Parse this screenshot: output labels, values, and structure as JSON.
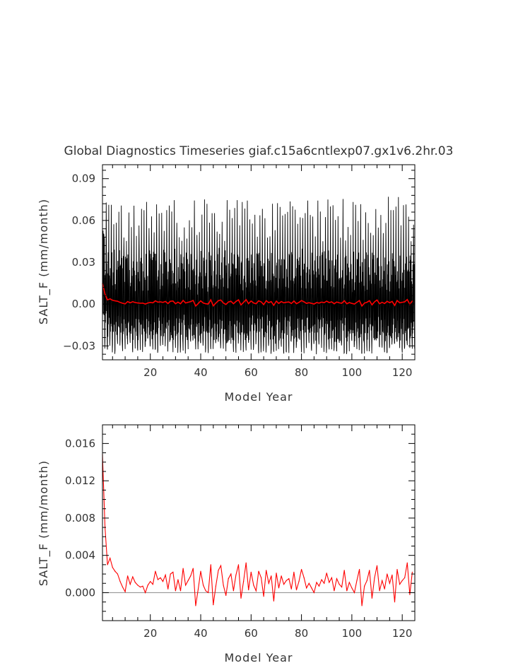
{
  "title": "Global Diagnostics Timeseries giaf.c15a6cntlexp07.gx1v6.2hr.03",
  "colors": {
    "raw_line": "#000000",
    "annual_line": "#ff0000",
    "zero_line": "#888888"
  },
  "chart_data": [
    {
      "type": "line",
      "xlabel": "Model Year",
      "ylabel": "SALT_F (mm/month)",
      "xlim": [
        1,
        125
      ],
      "ylim": [
        -0.04,
        0.1
      ],
      "x_ticks": [
        20,
        40,
        60,
        80,
        100,
        120
      ],
      "x_tick_labels": [
        "20",
        "40",
        "60",
        "80",
        "100",
        "120"
      ],
      "y_ticks": [
        -0.03,
        0.0,
        0.03,
        0.06,
        0.09
      ],
      "y_tick_labels": [
        "−0.03",
        "0.00",
        "0.03",
        "0.06",
        "0.09"
      ],
      "zero_line": true,
      "series": [
        {
          "style": "monthly-raw",
          "color": "#000000",
          "annual_peak_range": [
            0.045,
            0.077
          ],
          "annual_trough_range": [
            -0.036,
            -0.024
          ]
        },
        {
          "style": "annual-mean",
          "color": "#ff0000",
          "x": [
            1,
            2,
            3,
            4,
            5,
            6,
            7,
            8,
            9,
            10,
            11,
            12,
            13,
            14,
            15,
            16,
            17,
            18,
            19,
            20,
            21,
            22,
            23,
            24,
            25,
            26,
            27,
            28,
            29,
            30,
            31,
            32,
            33,
            34,
            35,
            36,
            37,
            38,
            39,
            40,
            41,
            42,
            43,
            44,
            45,
            46,
            47,
            48,
            49,
            50,
            51,
            52,
            53,
            54,
            55,
            56,
            57,
            58,
            59,
            60,
            61,
            62,
            63,
            64,
            65,
            66,
            67,
            68,
            69,
            70,
            71,
            72,
            73,
            74,
            75,
            76,
            77,
            78,
            79,
            80,
            81,
            82,
            83,
            84,
            85,
            86,
            87,
            88,
            89,
            90,
            91,
            92,
            93,
            94,
            95,
            96,
            97,
            98,
            99,
            100,
            101,
            102,
            103,
            104,
            105,
            106,
            107,
            108,
            109,
            110,
            111,
            112,
            113,
            114,
            115,
            116,
            117,
            118,
            119,
            120,
            121,
            122,
            123,
            124
          ],
          "values": [
            0.0148,
            0.007,
            0.003,
            0.0037,
            0.0027,
            0.0023,
            0.002,
            0.0012,
            0.0006,
            0.0001,
            0.0018,
            0.0009,
            0.0017,
            0.0011,
            0.0008,
            0.0006,
            0.0007,
            0.0,
            0.0008,
            0.0012,
            0.0009,
            0.0023,
            0.0014,
            0.0016,
            0.0012,
            0.0019,
            0.0004,
            0.002,
            0.0022,
            0.0002,
            0.0014,
            0.0002,
            0.0026,
            0.0008,
            0.0013,
            0.0018,
            0.0026,
            -0.0014,
            0.0004,
            0.0023,
            0.0008,
            0.0002,
            0.0,
            0.003,
            -0.0013,
            0.0007,
            0.0024,
            0.0029,
            0.0008,
            -0.0003,
            0.0015,
            0.002,
            0.0002,
            0.0019,
            0.003,
            -0.0006,
            0.0012,
            0.0032,
            0.0003,
            0.0022,
            0.0008,
            0.0002,
            0.0023,
            0.0016,
            -0.0004,
            0.0024,
            0.001,
            0.0018,
            -0.0009,
            0.0021,
            0.0005,
            0.0018,
            0.0009,
            0.0013,
            0.0015,
            0.0004,
            0.0022,
            0.0003,
            0.0012,
            0.0025,
            0.0016,
            0.0005,
            0.001,
            0.0005,
            0.0,
            0.0011,
            0.0007,
            0.0014,
            0.001,
            0.0021,
            0.0011,
            0.0016,
            0.0002,
            0.0015,
            0.0009,
            0.0006,
            0.0024,
            0.0002,
            0.0011,
            0.0005,
            0.0,
            0.0013,
            0.0025,
            -0.0014,
            0.0007,
            0.0013,
            0.0024,
            -0.0006,
            0.0016,
            0.0029,
            0.0002,
            0.0013,
            0.0004,
            0.002,
            0.001,
            0.0019,
            -0.001,
            0.0025,
            0.0009,
            0.0013,
            0.0016,
            0.0032,
            -0.0002,
            0.0022
          ]
        }
      ]
    },
    {
      "type": "line",
      "xlabel": "Model Year",
      "ylabel": "SALT_F (mm/month)",
      "xlim": [
        1,
        125
      ],
      "ylim": [
        -0.003,
        0.018
      ],
      "x_ticks": [
        20,
        40,
        60,
        80,
        100,
        120
      ],
      "x_tick_labels": [
        "20",
        "40",
        "60",
        "80",
        "100",
        "120"
      ],
      "y_ticks": [
        0.0,
        0.004,
        0.008,
        0.012,
        0.016
      ],
      "y_tick_labels": [
        "0.000",
        "0.004",
        "0.008",
        "0.012",
        "0.016"
      ],
      "zero_line": true,
      "series": [
        {
          "style": "annual-mean",
          "color": "#ff0000",
          "x": [
            1,
            2,
            3,
            4,
            5,
            6,
            7,
            8,
            9,
            10,
            11,
            12,
            13,
            14,
            15,
            16,
            17,
            18,
            19,
            20,
            21,
            22,
            23,
            24,
            25,
            26,
            27,
            28,
            29,
            30,
            31,
            32,
            33,
            34,
            35,
            36,
            37,
            38,
            39,
            40,
            41,
            42,
            43,
            44,
            45,
            46,
            47,
            48,
            49,
            50,
            51,
            52,
            53,
            54,
            55,
            56,
            57,
            58,
            59,
            60,
            61,
            62,
            63,
            64,
            65,
            66,
            67,
            68,
            69,
            70,
            71,
            72,
            73,
            74,
            75,
            76,
            77,
            78,
            79,
            80,
            81,
            82,
            83,
            84,
            85,
            86,
            87,
            88,
            89,
            90,
            91,
            92,
            93,
            94,
            95,
            96,
            97,
            98,
            99,
            100,
            101,
            102,
            103,
            104,
            105,
            106,
            107,
            108,
            109,
            110,
            111,
            112,
            113,
            114,
            115,
            116,
            117,
            118,
            119,
            120,
            121,
            122,
            123,
            124
          ],
          "values": [
            0.0148,
            0.007,
            0.003,
            0.0037,
            0.0027,
            0.0023,
            0.002,
            0.0012,
            0.0006,
            0.0001,
            0.0018,
            0.0009,
            0.0017,
            0.0011,
            0.0008,
            0.0006,
            0.0007,
            0.0,
            0.0008,
            0.0012,
            0.0009,
            0.0023,
            0.0014,
            0.0016,
            0.0012,
            0.0019,
            0.0004,
            0.002,
            0.0022,
            0.0002,
            0.0014,
            0.0002,
            0.0026,
            0.0008,
            0.0013,
            0.0018,
            0.0026,
            -0.0014,
            0.0004,
            0.0023,
            0.0008,
            0.0002,
            0.0,
            0.003,
            -0.0013,
            0.0007,
            0.0024,
            0.0029,
            0.0008,
            -0.0003,
            0.0015,
            0.002,
            0.0002,
            0.0019,
            0.003,
            -0.0006,
            0.0012,
            0.0032,
            0.0003,
            0.0022,
            0.0008,
            0.0002,
            0.0023,
            0.0016,
            -0.0004,
            0.0024,
            0.001,
            0.0018,
            -0.0009,
            0.0021,
            0.0005,
            0.0018,
            0.0009,
            0.0013,
            0.0015,
            0.0004,
            0.0022,
            0.0003,
            0.0012,
            0.0025,
            0.0016,
            0.0005,
            0.001,
            0.0005,
            0.0,
            0.0011,
            0.0007,
            0.0014,
            0.001,
            0.0021,
            0.0011,
            0.0016,
            0.0002,
            0.0015,
            0.0009,
            0.0006,
            0.0024,
            0.0002,
            0.0011,
            0.0005,
            0.0,
            0.0013,
            0.0025,
            -0.0014,
            0.0007,
            0.0013,
            0.0024,
            -0.0006,
            0.0016,
            0.0029,
            0.0002,
            0.0013,
            0.0004,
            0.002,
            0.001,
            0.0019,
            -0.001,
            0.0025,
            0.0009,
            0.0013,
            0.0016,
            0.0032,
            -0.0002,
            0.0022
          ]
        }
      ]
    }
  ]
}
